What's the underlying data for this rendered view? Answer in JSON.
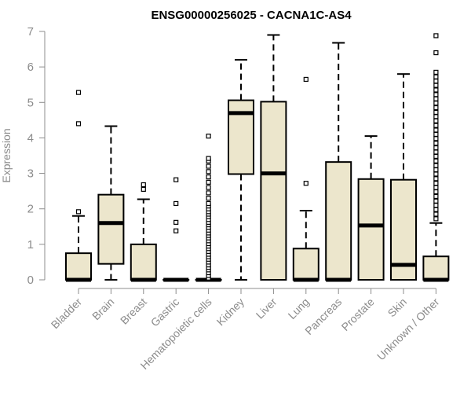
{
  "chart_data": {
    "type": "boxplot",
    "title": "ENSG00000256025 - CACNA1C-AS4",
    "xlabel": "",
    "ylabel": "Expression",
    "ylim": [
      0,
      7
    ],
    "yticks": [
      0,
      1,
      2,
      3,
      4,
      5,
      6,
      7
    ],
    "box_color": "#ece6cc",
    "axis_color": "#8c8c8c",
    "categories": [
      "Bladder",
      "Brain",
      "Breast",
      "Gastric",
      "Hematopoietic cells",
      "Kidney",
      "Liver",
      "Lung",
      "Pancreas",
      "Prostate",
      "Skin",
      "Unknown / Other"
    ],
    "boxes": [
      {
        "name": "Bladder",
        "whisker_low": 0,
        "q1": 0,
        "median": 0,
        "q3": 0.75,
        "whisker_high": 1.8,
        "outliers": [
          1.92,
          4.4,
          5.28
        ]
      },
      {
        "name": "Brain",
        "whisker_low": 0,
        "q1": 0.45,
        "median": 1.6,
        "q3": 2.4,
        "whisker_high": 4.33,
        "outliers": []
      },
      {
        "name": "Breast",
        "whisker_low": 0,
        "q1": 0,
        "median": 0,
        "q3": 1.0,
        "whisker_high": 2.27,
        "outliers": [
          2.55,
          2.68
        ]
      },
      {
        "name": "Gastric",
        "whisker_low": 0,
        "q1": 0,
        "median": 0,
        "q3": 0,
        "whisker_high": 0,
        "outliers": [
          1.38,
          1.62,
          2.15,
          2.82
        ]
      },
      {
        "name": "Hematopoietic cells",
        "whisker_low": 0,
        "q1": 0,
        "median": 0,
        "q3": 0,
        "whisker_high": 0,
        "outliers": [
          0.05,
          0.12,
          0.2,
          0.28,
          0.35,
          0.42,
          0.5,
          0.58,
          0.65,
          0.72,
          0.8,
          0.88,
          0.95,
          1.02,
          1.1,
          1.18,
          1.25,
          1.32,
          1.4,
          1.48,
          1.55,
          1.62,
          1.7,
          1.78,
          1.85,
          1.92,
          2.0,
          2.08,
          2.15,
          2.3,
          2.45,
          2.6,
          2.75,
          2.9,
          3.05,
          3.2,
          3.35,
          3.42,
          4.05
        ]
      },
      {
        "name": "Kidney",
        "whisker_low": 0,
        "q1": 2.98,
        "median": 4.7,
        "q3": 5.06,
        "whisker_high": 6.2,
        "outliers": []
      },
      {
        "name": "Liver",
        "whisker_low": 0,
        "q1": 0,
        "median": 3.0,
        "q3": 5.02,
        "whisker_high": 6.9,
        "outliers": []
      },
      {
        "name": "Lung",
        "whisker_low": 0,
        "q1": 0,
        "median": 0,
        "q3": 0.88,
        "whisker_high": 1.95,
        "outliers": [
          2.72,
          5.65
        ]
      },
      {
        "name": "Pancreas",
        "whisker_low": 0,
        "q1": 0,
        "median": 0,
        "q3": 3.32,
        "whisker_high": 6.68,
        "outliers": []
      },
      {
        "name": "Prostate",
        "whisker_low": 0,
        "q1": 0,
        "median": 1.53,
        "q3": 2.84,
        "whisker_high": 4.05,
        "outliers": []
      },
      {
        "name": "Skin",
        "whisker_low": 0,
        "q1": 0,
        "median": 0.42,
        "q3": 2.82,
        "whisker_high": 5.8,
        "outliers": []
      },
      {
        "name": "Unknown / Other",
        "whisker_low": 0,
        "q1": 0,
        "median": 0,
        "q3": 0.66,
        "whisker_high": 1.6,
        "outliers": [
          1.72,
          1.85,
          1.98,
          2.1,
          2.22,
          2.35,
          2.48,
          2.6,
          2.72,
          2.85,
          2.98,
          3.1,
          3.22,
          3.35,
          3.48,
          3.6,
          3.72,
          3.85,
          3.98,
          4.1,
          4.22,
          4.35,
          4.48,
          4.6,
          4.72,
          4.85,
          4.98,
          5.1,
          5.22,
          5.35,
          5.48,
          5.6,
          5.72,
          5.85,
          6.4,
          6.88
        ]
      }
    ]
  }
}
